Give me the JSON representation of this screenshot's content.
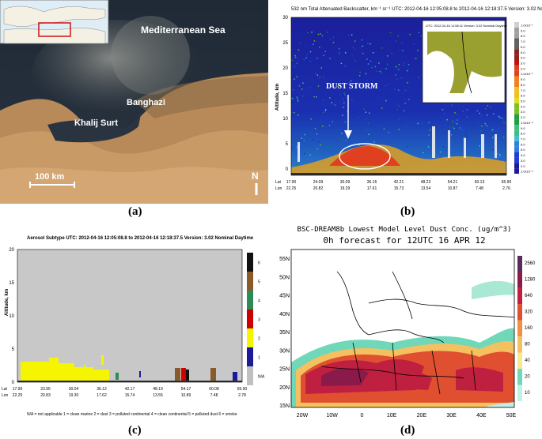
{
  "panel_a": {
    "label": "(a)",
    "sea_label": "Mediterranean Sea",
    "city_label": "Banghazi",
    "gulf_label": "Khalij Surt",
    "scale_label": "100 km",
    "north_label": "N"
  },
  "panel_b": {
    "label": "(b)",
    "title": "532 nm Total Attenuated Backscatter, km⁻¹ sr⁻¹   UTC: 2012-04-16 12:05:08.8 to 2012-04-16 12:18:37.5   Version: 3.02 Nominal Daytime",
    "ylabel": "Altitude, km",
    "yticks": [
      "30",
      "25",
      "20",
      "15",
      "10",
      "5",
      "0"
    ],
    "annotation": "DUST STORM",
    "lat_prefix": "Lat",
    "lon_prefix": "Lon",
    "lat_ticks": [
      "17.90",
      "24.09",
      "30.09",
      "36.16",
      "42.21",
      "48.23",
      "54.21",
      "60.13",
      "65.90"
    ],
    "lon_ticks": [
      "22.25",
      "20.82",
      "19.29",
      "17.61",
      "15.73",
      "13.54",
      "10.87",
      "7.48",
      "2.76"
    ],
    "inset_title": "UTC: 2012-04-16  11:58:11    Version: 3.02  Nominal   Daytime",
    "colorbar_labels": [
      "1.0x10⁻¹",
      "9.0",
      "8.0",
      "7.0",
      "6.0",
      "5.0",
      "4.0",
      "3.0",
      "2.0",
      "1.0x10⁻²",
      "9.0",
      "8.0",
      "7.0",
      "6.0",
      "5.0",
      "4.0",
      "3.0",
      "2.0",
      "1.0x10⁻³",
      "9.0",
      "8.0",
      "7.0",
      "6.0",
      "5.0",
      "4.0",
      "3.0",
      "2.0",
      "1.0x10⁻⁴"
    ],
    "colors": [
      "#1a1aa0",
      "#1f3fd0",
      "#2f80e0",
      "#40c0d0",
      "#40c080",
      "#20a040",
      "#80c020",
      "#e0e020",
      "#f0c020",
      "#f08020",
      "#e04020",
      "#c01010",
      "#902020",
      "#606060",
      "#a0a0a0",
      "#d0d0d0"
    ]
  },
  "panel_c": {
    "label": "(c)",
    "title": "Aerosol Subtype   UTC: 2012-04-16 12:05:08.8 to 2012-04-16 12:18:37.5   Version: 3.02  Nominal Daytime",
    "ylabel": "Altitude, km",
    "yticks": [
      "20",
      "15",
      "10",
      "5",
      "0"
    ],
    "lat_prefix": "Lat",
    "lon_prefix": "Lon",
    "lat_ticks": [
      "17.90",
      "23.95",
      "30.04",
      "36.12",
      "42.17",
      "48.19",
      "54.17",
      "60.08",
      "65.90"
    ],
    "lon_ticks": [
      "22.25",
      "20.83",
      "19.30",
      "17.62",
      "15.74",
      "13.55",
      "10.89",
      "7.48",
      "2.78"
    ],
    "legend_text": "N/A = not applicable    1 = clean marine    2 = dust    3 = polluted continental    4 = clean continental    5 = polluted dust    6 = smoke",
    "colorbar": [
      {
        "label": "6",
        "color": "#111111"
      },
      {
        "label": "5",
        "color": "#8b5a2b"
      },
      {
        "label": "4",
        "color": "#2e8b57"
      },
      {
        "label": "3",
        "color": "#cc0000"
      },
      {
        "label": "2",
        "color": "#f5f500"
      },
      {
        "label": "1",
        "color": "#1a1a9a"
      },
      {
        "label": "N/A",
        "color": "#c0c0c0"
      }
    ]
  },
  "panel_d": {
    "label": "(d)",
    "title_line1": "BSC-DREAM8b Lowest Model Level Dust Conc. (ug/m^3)",
    "title_line2": "0h forecast for 12UTC 16 APR 12",
    "yticks": [
      "55N",
      "50N",
      "45N",
      "40N",
      "35N",
      "30N",
      "25N",
      "20N",
      "15N"
    ],
    "xticks": [
      "20W",
      "10W",
      "0",
      "10E",
      "20E",
      "30E",
      "40E",
      "50E"
    ],
    "colorbar": [
      {
        "label": "2560",
        "color": "#5a2a5a"
      },
      {
        "label": "1280",
        "color": "#8a1a4a"
      },
      {
        "label": "640",
        "color": "#c02040"
      },
      {
        "label": "320",
        "color": "#e05030"
      },
      {
        "label": "160",
        "color": "#f09040"
      },
      {
        "label": "80",
        "color": "#f5c060"
      },
      {
        "label": "40",
        "color": "#f8e890"
      },
      {
        "label": "20",
        "color": "#70d8b8"
      },
      {
        "label": "10",
        "color": "#c0f0e8"
      }
    ]
  }
}
